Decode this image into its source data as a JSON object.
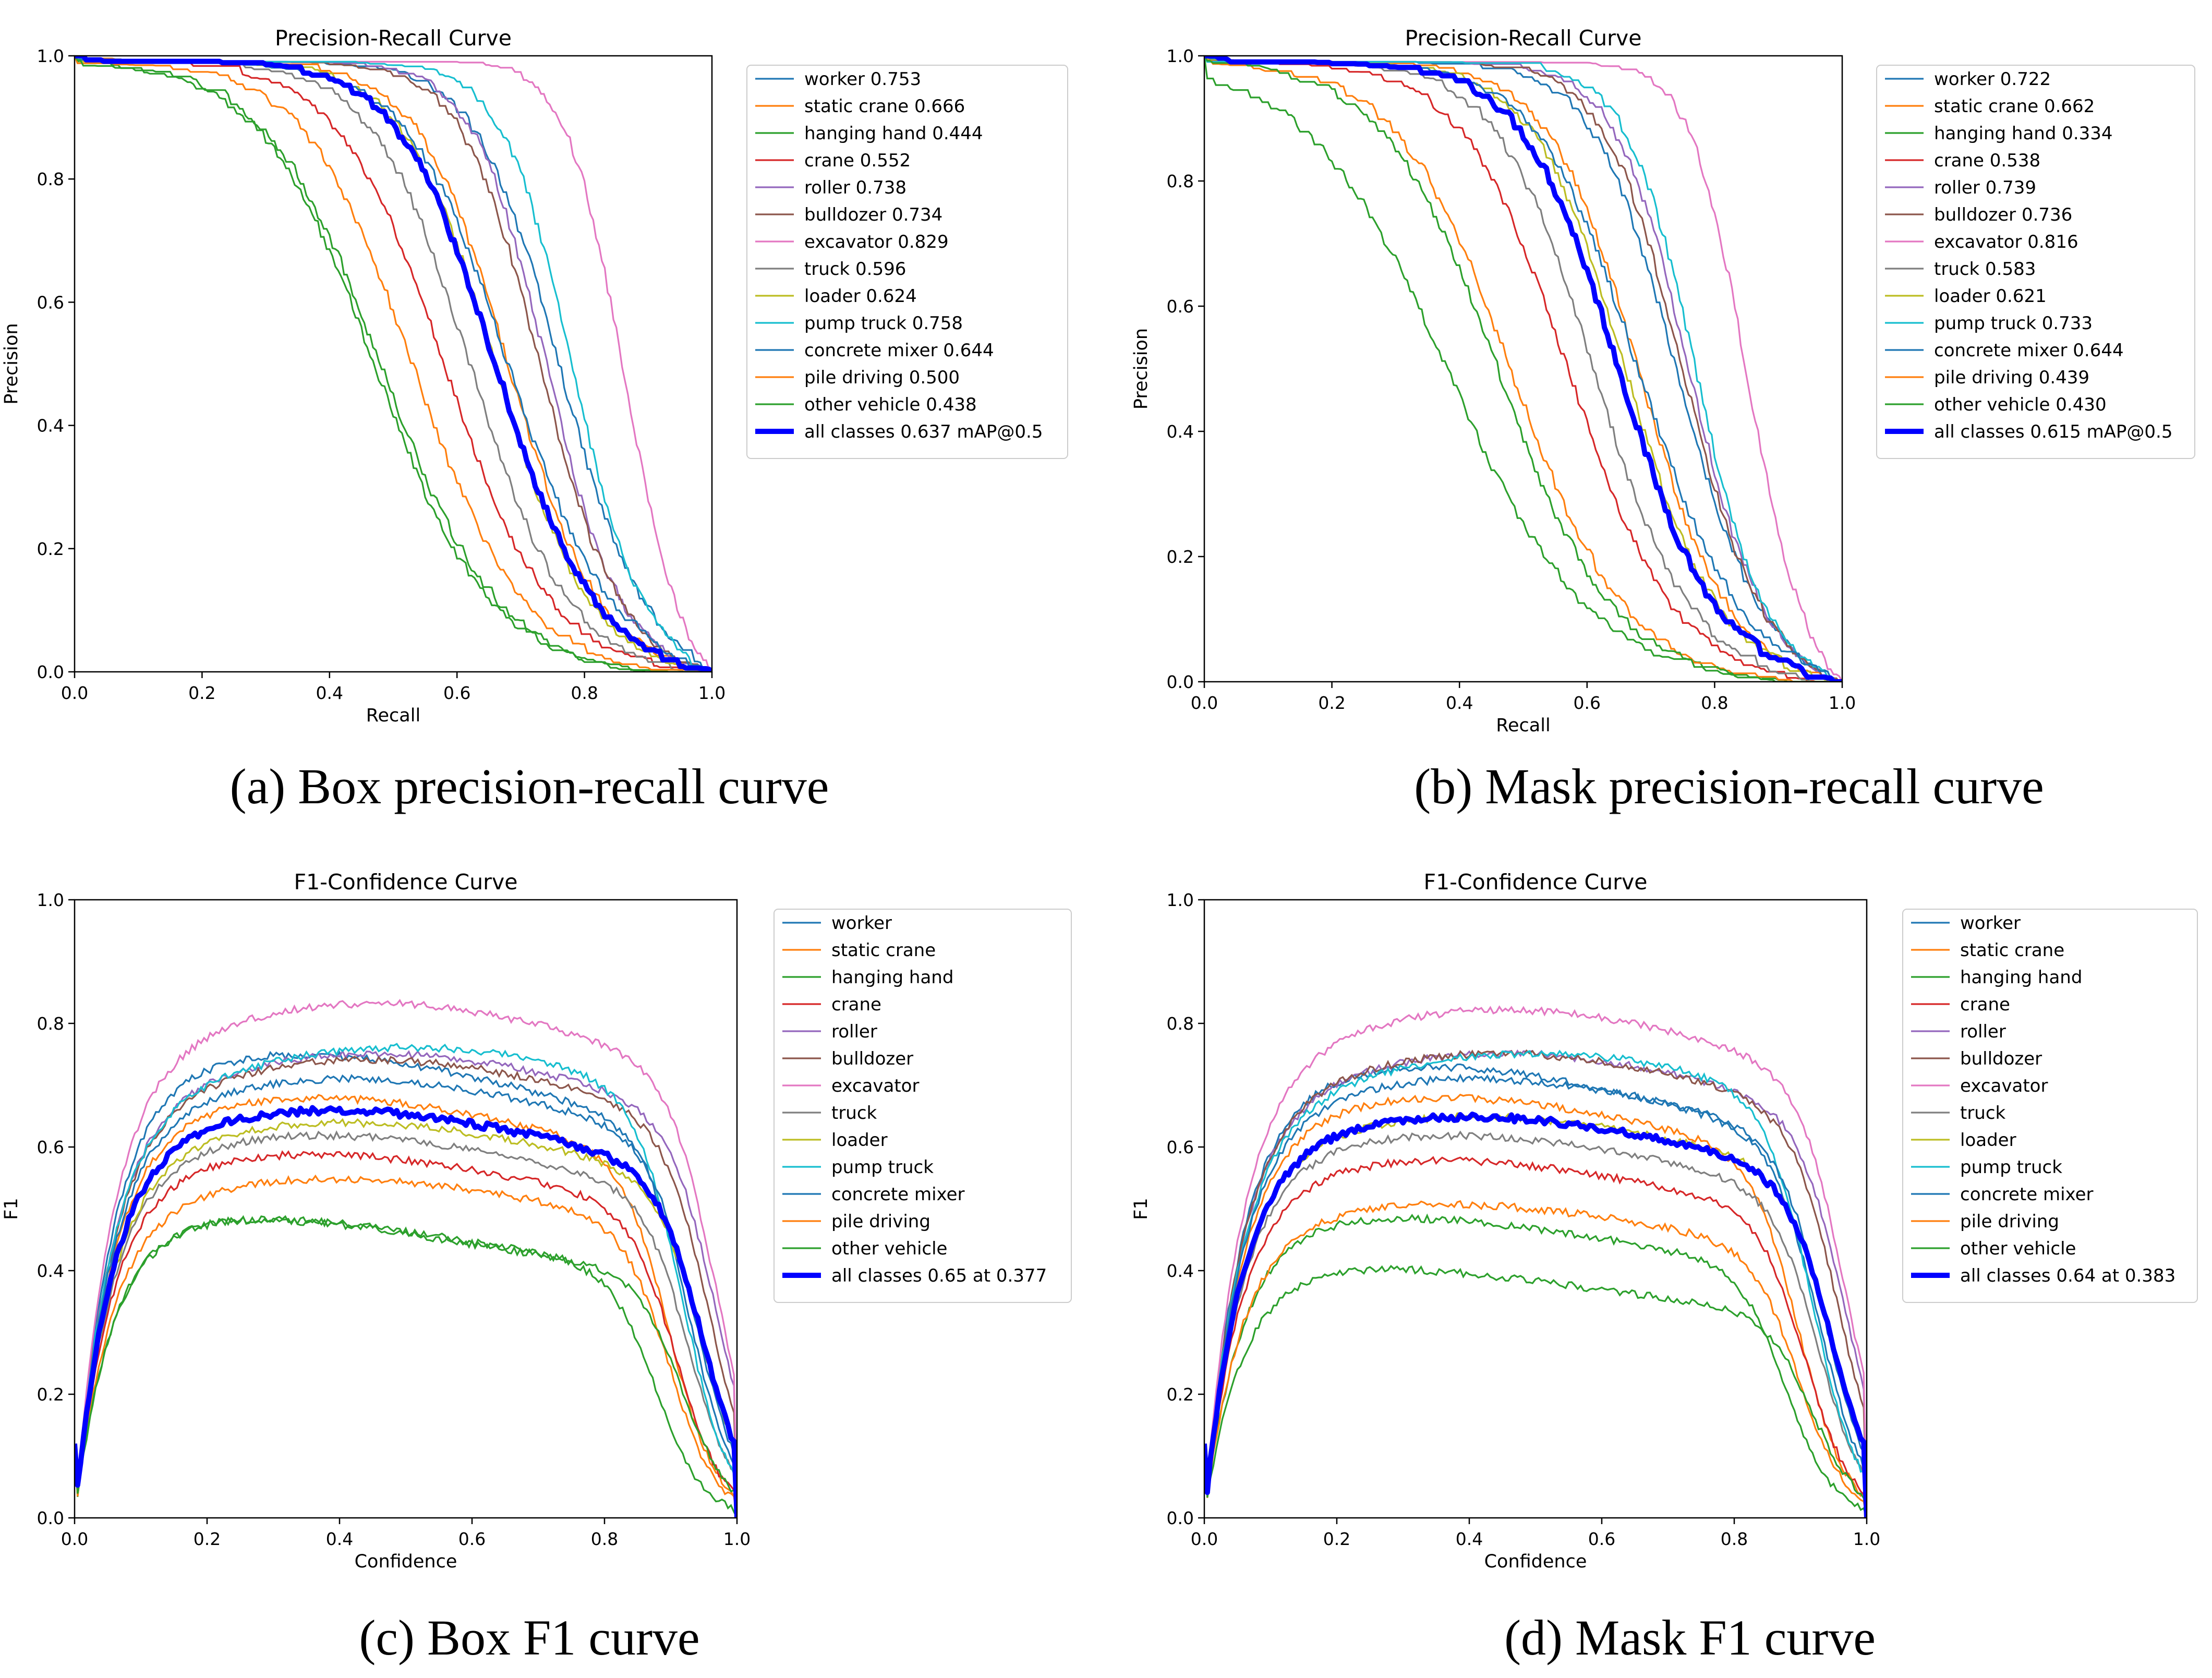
{
  "colors": {
    "class_colors": [
      "#1f77b4",
      "#ff7f0e",
      "#2ca02c",
      "#d62728",
      "#9467bd",
      "#8c564b",
      "#e377c2",
      "#7f7f7f",
      "#bcbd22",
      "#17becf",
      "#1f77b4",
      "#ff7f0e",
      "#2ca02c"
    ],
    "all_classes": "#0000ff",
    "axis": "#000000",
    "background": "#ffffff"
  },
  "chart_data": [
    {
      "id": "a",
      "type": "line",
      "kind": "pr",
      "title": "Precision-Recall Curve",
      "xlabel": "Recall",
      "ylabel": "Precision",
      "xlim": [
        0,
        1
      ],
      "ylim": [
        0,
        1
      ],
      "xticks": [
        "0.0",
        "0.2",
        "0.4",
        "0.6",
        "0.8",
        "1.0"
      ],
      "yticks": [
        "0.0",
        "0.2",
        "0.4",
        "0.6",
        "0.8",
        "1.0"
      ],
      "caption": "(a) Box precision-recall curve",
      "series": [
        {
          "name": "worker",
          "legend": "worker 0.753",
          "half_recall": 0.76,
          "steep": 7.5
        },
        {
          "name": "static crane",
          "legend": "static crane 0.666",
          "half_recall": 0.68,
          "steep": 7.0
        },
        {
          "name": "hanging hand",
          "legend": "hanging hand 0.444",
          "half_recall": 0.48,
          "steep": 5.5
        },
        {
          "name": "crane",
          "legend": "crane 0.552",
          "half_recall": 0.58,
          "steep": 6.0
        },
        {
          "name": "roller",
          "legend": "roller 0.738",
          "half_recall": 0.74,
          "steep": 8.5
        },
        {
          "name": "bulldozer",
          "legend": "bulldozer 0.734",
          "half_recall": 0.73,
          "steep": 8.0
        },
        {
          "name": "excavator",
          "legend": "excavator 0.829",
          "half_recall": 0.86,
          "steep": 11.0
        },
        {
          "name": "truck",
          "legend": "truck 0.596",
          "half_recall": 0.62,
          "steep": 6.5
        },
        {
          "name": "loader",
          "legend": "loader 0.624",
          "half_recall": 0.66,
          "steep": 6.8
        },
        {
          "name": "pump truck",
          "legend": "pump truck 0.758",
          "half_recall": 0.78,
          "steep": 9.0
        },
        {
          "name": "concrete mixer",
          "legend": "concrete mixer 0.644",
          "half_recall": 0.68,
          "steep": 6.2
        },
        {
          "name": "pile driving",
          "legend": "pile driving 0.500",
          "half_recall": 0.53,
          "steep": 5.8
        },
        {
          "name": "other vehicle",
          "legend": "other vehicle 0.438",
          "half_recall": 0.47,
          "steep": 5.5
        }
      ],
      "all": {
        "name": "all classes",
        "legend": "all classes 0.637 mAP@0.5",
        "half_recall": 0.66,
        "steep": 6.5
      }
    },
    {
      "id": "b",
      "type": "line",
      "kind": "pr",
      "title": "Precision-Recall Curve",
      "xlabel": "Recall",
      "ylabel": "Precision",
      "xlim": [
        0,
        1
      ],
      "ylim": [
        0,
        1
      ],
      "xticks": [
        "0.0",
        "0.2",
        "0.4",
        "0.6",
        "0.8",
        "1.0"
      ],
      "yticks": [
        "0.0",
        "0.2",
        "0.4",
        "0.6",
        "0.8",
        "1.0"
      ],
      "caption": "(b) Mask precision-recall curve",
      "series": [
        {
          "name": "worker",
          "legend": "worker 0.722",
          "half_recall": 0.74,
          "steep": 7.5
        },
        {
          "name": "static crane",
          "legend": "static crane 0.662",
          "half_recall": 0.68,
          "steep": 7.0
        },
        {
          "name": "hanging hand",
          "legend": "hanging hand 0.334",
          "half_recall": 0.38,
          "steep": 4.5
        },
        {
          "name": "crane",
          "legend": "crane 0.538",
          "half_recall": 0.57,
          "steep": 6.0
        },
        {
          "name": "roller",
          "legend": "roller 0.739",
          "half_recall": 0.76,
          "steep": 8.5
        },
        {
          "name": "bulldozer",
          "legend": "bulldozer 0.736",
          "half_recall": 0.75,
          "steep": 8.0
        },
        {
          "name": "excavator",
          "legend": "excavator 0.816",
          "half_recall": 0.85,
          "steep": 11.0
        },
        {
          "name": "truck",
          "legend": "truck 0.583",
          "half_recall": 0.61,
          "steep": 6.5
        },
        {
          "name": "loader",
          "legend": "loader 0.621",
          "half_recall": 0.66,
          "steep": 6.8
        },
        {
          "name": "pump truck",
          "legend": "pump truck 0.733",
          "half_recall": 0.77,
          "steep": 9.0
        },
        {
          "name": "concrete mixer",
          "legend": "concrete mixer 0.644",
          "half_recall": 0.68,
          "steep": 6.2
        },
        {
          "name": "pile driving",
          "legend": "pile driving 0.439",
          "half_recall": 0.48,
          "steep": 5.5
        },
        {
          "name": "other vehicle",
          "legend": "other vehicle 0.430",
          "half_recall": 0.46,
          "steep": 5.5
        }
      ],
      "all": {
        "name": "all classes",
        "legend": "all classes 0.615 mAP@0.5",
        "half_recall": 0.65,
        "steep": 6.5
      }
    },
    {
      "id": "c",
      "type": "line",
      "kind": "f1",
      "title": "F1-Confidence Curve",
      "xlabel": "Confidence",
      "ylabel": "F1",
      "xlim": [
        0,
        1
      ],
      "ylim": [
        0,
        1
      ],
      "xticks": [
        "0.0",
        "0.2",
        "0.4",
        "0.6",
        "0.8",
        "1.0"
      ],
      "yticks": [
        "0.0",
        "0.2",
        "0.4",
        "0.6",
        "0.8",
        "1.0"
      ],
      "caption": "(c) Box F1 curve",
      "series": [
        {
          "name": "worker",
          "legend": "worker",
          "peak": 0.74,
          "peak_conf": 0.32,
          "drop": 0.93
        },
        {
          "name": "static crane",
          "legend": "static crane",
          "peak": 0.67,
          "peak_conf": 0.35,
          "drop": 0.9
        },
        {
          "name": "hanging hand",
          "legend": "hanging hand",
          "peak": 0.48,
          "peak_conf": 0.22,
          "drop": 0.88
        },
        {
          "name": "crane",
          "legend": "crane",
          "peak": 0.58,
          "peak_conf": 0.34,
          "drop": 0.91
        },
        {
          "name": "roller",
          "legend": "roller",
          "peak": 0.74,
          "peak_conf": 0.45,
          "drop": 0.97
        },
        {
          "name": "bulldozer",
          "legend": "bulldozer",
          "peak": 0.73,
          "peak_conf": 0.44,
          "drop": 0.96
        },
        {
          "name": "excavator",
          "legend": "excavator",
          "peak": 0.82,
          "peak_conf": 0.45,
          "drop": 0.97
        },
        {
          "name": "truck",
          "legend": "truck",
          "peak": 0.61,
          "peak_conf": 0.36,
          "drop": 0.93
        },
        {
          "name": "loader",
          "legend": "loader",
          "peak": 0.63,
          "peak_conf": 0.4,
          "drop": 0.95
        },
        {
          "name": "pump truck",
          "legend": "pump truck",
          "peak": 0.75,
          "peak_conf": 0.5,
          "drop": 0.92
        },
        {
          "name": "concrete mixer",
          "legend": "concrete mixer",
          "peak": 0.7,
          "peak_conf": 0.4,
          "drop": 0.94
        },
        {
          "name": "pile driving",
          "legend": "pile driving",
          "peak": 0.54,
          "peak_conf": 0.38,
          "drop": 0.9
        },
        {
          "name": "other vehicle",
          "legend": "other vehicle",
          "peak": 0.48,
          "peak_conf": 0.2,
          "drop": 0.92
        }
      ],
      "all": {
        "name": "all classes",
        "legend": "all classes 0.65 at 0.377",
        "peak": 0.65,
        "peak_conf": 0.377,
        "drop": 0.95
      }
    },
    {
      "id": "d",
      "type": "line",
      "kind": "f1",
      "title": "F1-Confidence Curve",
      "xlabel": "Confidence",
      "ylabel": "F1",
      "xlim": [
        0,
        1
      ],
      "ylim": [
        0,
        1
      ],
      "xticks": [
        "0.0",
        "0.2",
        "0.4",
        "0.6",
        "0.8",
        "1.0"
      ],
      "yticks": [
        "0.0",
        "0.2",
        "0.4",
        "0.6",
        "0.8",
        "1.0"
      ],
      "caption": "(d) Mask F1 curve",
      "series": [
        {
          "name": "worker",
          "legend": "worker",
          "peak": 0.72,
          "peak_conf": 0.32,
          "drop": 0.93
        },
        {
          "name": "static crane",
          "legend": "static crane",
          "peak": 0.67,
          "peak_conf": 0.35,
          "drop": 0.9
        },
        {
          "name": "hanging hand",
          "legend": "hanging hand",
          "peak": 0.48,
          "peak_conf": 0.25,
          "drop": 0.88
        },
        {
          "name": "crane",
          "legend": "crane",
          "peak": 0.57,
          "peak_conf": 0.34,
          "drop": 0.91
        },
        {
          "name": "roller",
          "legend": "roller",
          "peak": 0.74,
          "peak_conf": 0.45,
          "drop": 0.97
        },
        {
          "name": "bulldozer",
          "legend": "bulldozer",
          "peak": 0.74,
          "peak_conf": 0.44,
          "drop": 0.96
        },
        {
          "name": "excavator",
          "legend": "excavator",
          "peak": 0.81,
          "peak_conf": 0.45,
          "drop": 0.97
        },
        {
          "name": "truck",
          "legend": "truck",
          "peak": 0.61,
          "peak_conf": 0.36,
          "drop": 0.93
        },
        {
          "name": "loader",
          "legend": "loader",
          "peak": 0.64,
          "peak_conf": 0.4,
          "drop": 0.95
        },
        {
          "name": "pump truck",
          "legend": "pump truck",
          "peak": 0.74,
          "peak_conf": 0.5,
          "drop": 0.92
        },
        {
          "name": "concrete mixer",
          "legend": "concrete mixer",
          "peak": 0.7,
          "peak_conf": 0.4,
          "drop": 0.94
        },
        {
          "name": "pile driving",
          "legend": "pile driving",
          "peak": 0.5,
          "peak_conf": 0.35,
          "drop": 0.9
        },
        {
          "name": "other vehicle",
          "legend": "other vehicle",
          "peak": 0.4,
          "peak_conf": 0.2,
          "drop": 0.92
        }
      ],
      "all": {
        "name": "all classes",
        "legend": "all classes 0.64 at 0.383",
        "peak": 0.64,
        "peak_conf": 0.383,
        "drop": 0.95
      }
    }
  ]
}
